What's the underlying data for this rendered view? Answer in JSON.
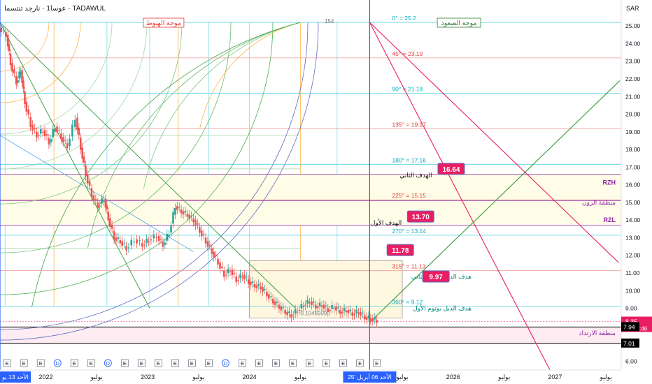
{
  "header": {
    "symbol_title": "عوسا1 · نارجد تنتسما · TADAWUL",
    "currency": "SAR",
    "pane_number": "154"
  },
  "chart_data": {
    "type": "line",
    "title": "",
    "y_axis_labels": [
      25.0,
      24.0,
      23.0,
      22.0,
      21.0,
      20.0,
      19.0,
      18.0,
      17.0,
      16.0,
      15.0,
      14.0,
      13.0,
      12.0,
      11.0,
      10.0,
      9.0,
      8.0,
      6.0
    ],
    "ylim": [
      5.5,
      25.6
    ],
    "x_tick_labels": [
      {
        "t": 2022.0,
        "label": "2022"
      },
      {
        "t": 2022.5,
        "label": "يوليو"
      },
      {
        "t": 2023.0,
        "label": "2023"
      },
      {
        "t": 2023.5,
        "label": "يوليو"
      },
      {
        "t": 2024.0,
        "label": "2024"
      },
      {
        "t": 2024.5,
        "label": "يوليو"
      },
      {
        "t": 2025.5,
        "label": "يوليو"
      },
      {
        "t": 2026.0,
        "label": "2026"
      },
      {
        "t": 2026.5,
        "label": "يوليو"
      },
      {
        "t": 2027.0,
        "label": "2027"
      },
      {
        "t": 2027.5,
        "label": "يوليو"
      }
    ],
    "xlim": [
      2021.55,
      2027.65
    ],
    "left_date_badge": "الأحد 13 يو",
    "right_date_badge": "الأحد 06 أبريل '25",
    "left_badge_t": 2021.55,
    "right_badge_t": 2025.18,
    "price_series": {
      "name": "",
      "points": [
        [
          2021.55,
          24.9
        ],
        [
          2021.62,
          24.5
        ],
        [
          2021.66,
          22.9
        ],
        [
          2021.72,
          21.8
        ],
        [
          2021.76,
          22.5
        ],
        [
          2021.8,
          20.7
        ],
        [
          2021.86,
          19.4
        ],
        [
          2021.92,
          18.8
        ],
        [
          2021.98,
          19.1
        ],
        [
          2022.04,
          18.4
        ],
        [
          2022.1,
          19.3
        ],
        [
          2022.16,
          18.7
        ],
        [
          2022.22,
          18.2
        ],
        [
          2022.3,
          19.8
        ],
        [
          2022.35,
          18.1
        ],
        [
          2022.4,
          16.6
        ],
        [
          2022.46,
          15.4
        ],
        [
          2022.52,
          14.8
        ],
        [
          2022.58,
          15.2
        ],
        [
          2022.62,
          14.1
        ],
        [
          2022.68,
          13.0
        ],
        [
          2022.74,
          12.8
        ],
        [
          2022.8,
          12.4
        ],
        [
          2022.88,
          12.9
        ],
        [
          2022.96,
          12.6
        ],
        [
          2023.02,
          12.9
        ],
        [
          2023.1,
          13.1
        ],
        [
          2023.16,
          12.6
        ],
        [
          2023.22,
          13.3
        ],
        [
          2023.28,
          14.8
        ],
        [
          2023.34,
          14.5
        ],
        [
          2023.4,
          14.3
        ],
        [
          2023.46,
          14.0
        ],
        [
          2023.52,
          13.4
        ],
        [
          2023.58,
          12.8
        ],
        [
          2023.64,
          12.2
        ],
        [
          2023.7,
          11.6
        ],
        [
          2023.76,
          10.9
        ],
        [
          2023.82,
          11.2
        ],
        [
          2023.88,
          10.6
        ],
        [
          2023.94,
          10.9
        ],
        [
          2024.0,
          10.5
        ],
        [
          2024.06,
          10.3
        ],
        [
          2024.12,
          10.2
        ],
        [
          2024.18,
          9.8
        ],
        [
          2024.24,
          9.4
        ],
        [
          2024.3,
          9.1
        ],
        [
          2024.36,
          8.8
        ],
        [
          2024.42,
          8.6
        ],
        [
          2024.48,
          8.9
        ],
        [
          2024.54,
          9.2
        ],
        [
          2024.6,
          9.4
        ],
        [
          2024.66,
          9.1
        ],
        [
          2024.72,
          9.2
        ],
        [
          2024.78,
          8.9
        ],
        [
          2024.84,
          9.1
        ],
        [
          2024.9,
          8.8
        ],
        [
          2024.96,
          8.9
        ],
        [
          2025.02,
          8.7
        ],
        [
          2025.08,
          8.8
        ],
        [
          2025.14,
          8.5
        ],
        [
          2025.2,
          8.4
        ],
        [
          2025.26,
          8.3
        ]
      ]
    },
    "price_tag": {
      "value": "8.25",
      "time": "21:37:46"
    },
    "level_tags": [
      "7.94",
      "7.01"
    ],
    "fan_levels": [
      {
        "label": "0° = 25.2",
        "value": 25.2
      },
      {
        "label": "45° = 23.19",
        "value": 23.19
      },
      {
        "label": "90° = 21.18",
        "value": 21.18
      },
      {
        "label": "135° = 19.17",
        "value": 19.17
      },
      {
        "label": "180° = 17.16",
        "value": 17.16
      },
      {
        "label": "225° = 15.15",
        "value": 15.15
      },
      {
        "label": "270° = 13.14",
        "value": 13.14
      },
      {
        "label": "315° = 11.13",
        "value": 11.13
      },
      {
        "label": "360° = 9.12",
        "value": 9.12
      }
    ],
    "zone_labels": {
      "rzh": "RZH",
      "zone": "منطقة الزون",
      "rzl": "RZL",
      "bounce": "منطقة الارتداد"
    },
    "section_labels": {
      "down_wave": "موجة الهبوط",
      "up_wave": "موجة الصعود"
    },
    "targets": [
      {
        "value": "16.64",
        "label": "الهدف الثاني",
        "t": 2025.85,
        "y": 16.9
      },
      {
        "value": "13.70",
        "label": "الهدف الأول",
        "t": 2025.55,
        "y": 14.2
      },
      {
        "value": "11.78",
        "label": "",
        "t": 2025.35,
        "y": 12.3
      },
      {
        "value": "9.97",
        "label": "",
        "t": 2025.7,
        "y": 10.8
      }
    ],
    "target_labels": [
      {
        "text": "هدف الدبل بوتوم الثاني",
        "t": 2025.15,
        "y": 10.8
      },
      {
        "text": "هدف الدبل بوتوم الأول",
        "t": 2025.15,
        "y": 9.0
      }
    ],
    "box_value": "0.1045959",
    "event_markers": [
      "E",
      "E",
      "E",
      "D",
      "E",
      "E",
      "D",
      "E",
      "E",
      "E",
      "E",
      "E",
      "E",
      "D",
      "E",
      "E",
      "E",
      "E",
      "E",
      "E",
      "E",
      "E",
      "E"
    ]
  },
  "colors": {
    "price_up": "#26a69a",
    "price_down": "#ef5350",
    "fan_line": "#e57373",
    "green_line": "#43a047",
    "red_line": "#e91e63",
    "zone_fill": "#fffde7",
    "target_badge": "#e91e63"
  }
}
